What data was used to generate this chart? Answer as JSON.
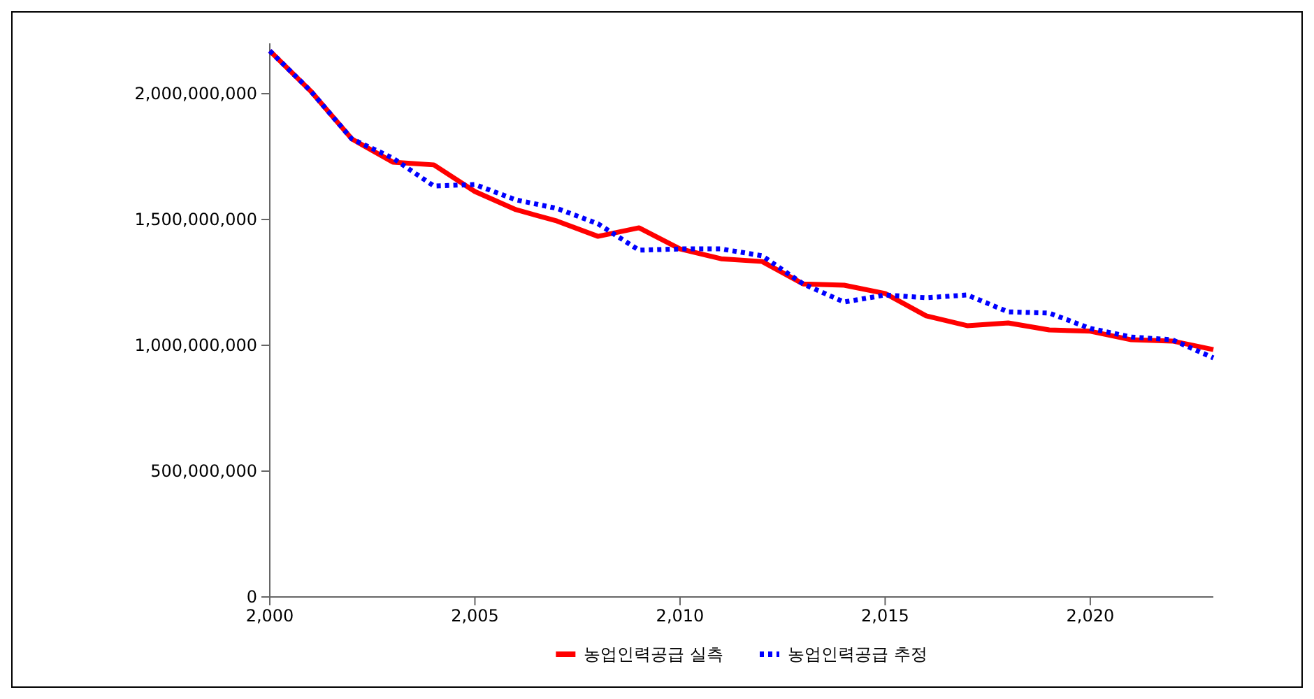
{
  "chart_data": {
    "type": "line",
    "x": [
      2000,
      2001,
      2002,
      2003,
      2004,
      2005,
      2006,
      2007,
      2008,
      2009,
      2010,
      2011,
      2012,
      2013,
      2014,
      2015,
      2016,
      2017,
      2018,
      2019,
      2020,
      2021,
      2022,
      2023
    ],
    "series": [
      {
        "name": "농업인력공급 실측",
        "color": "#ff0000",
        "line_style": "solid",
        "values": [
          2170000000,
          2010000000,
          1820000000,
          1728000000,
          1717000000,
          1611000000,
          1539000000,
          1494000000,
          1433000000,
          1467000000,
          1383000000,
          1344000000,
          1333000000,
          1244000000,
          1239000000,
          1206000000,
          1117000000,
          1078000000,
          1089000000,
          1061000000,
          1056000000,
          1022000000,
          1017000000,
          983000000
        ]
      },
      {
        "name": "농업인력공급 추정",
        "color": "#0000ff",
        "line_style": "dotted",
        "values": [
          2170000000,
          2010000000,
          1820000000,
          1744000000,
          1633000000,
          1639000000,
          1578000000,
          1544000000,
          1483000000,
          1378000000,
          1383000000,
          1383000000,
          1356000000,
          1244000000,
          1172000000,
          1200000000,
          1189000000,
          1200000000,
          1133000000,
          1128000000,
          1067000000,
          1033000000,
          1022000000,
          950000000
        ]
      }
    ],
    "xlim": [
      2000,
      2023
    ],
    "xticks": [
      {
        "value": 2000,
        "label": "2,000"
      },
      {
        "value": 2005,
        "label": "2,005"
      },
      {
        "value": 2010,
        "label": "2,010"
      },
      {
        "value": 2015,
        "label": "2,015"
      },
      {
        "value": 2020,
        "label": "2,020"
      }
    ],
    "ylim": [
      0,
      2200000000
    ],
    "yticks": [
      0,
      {
        "value": 500000000,
        "label": "500,000,000"
      },
      {
        "value": 1000000000,
        "label": "1,000,000,000"
      },
      {
        "value": 1500000000,
        "label": "1,500,000,000"
      },
      {
        "value": 2000000000,
        "label": "2,000,000,000"
      }
    ],
    "grid": false,
    "legend": "bottom",
    "marker": "none"
  }
}
